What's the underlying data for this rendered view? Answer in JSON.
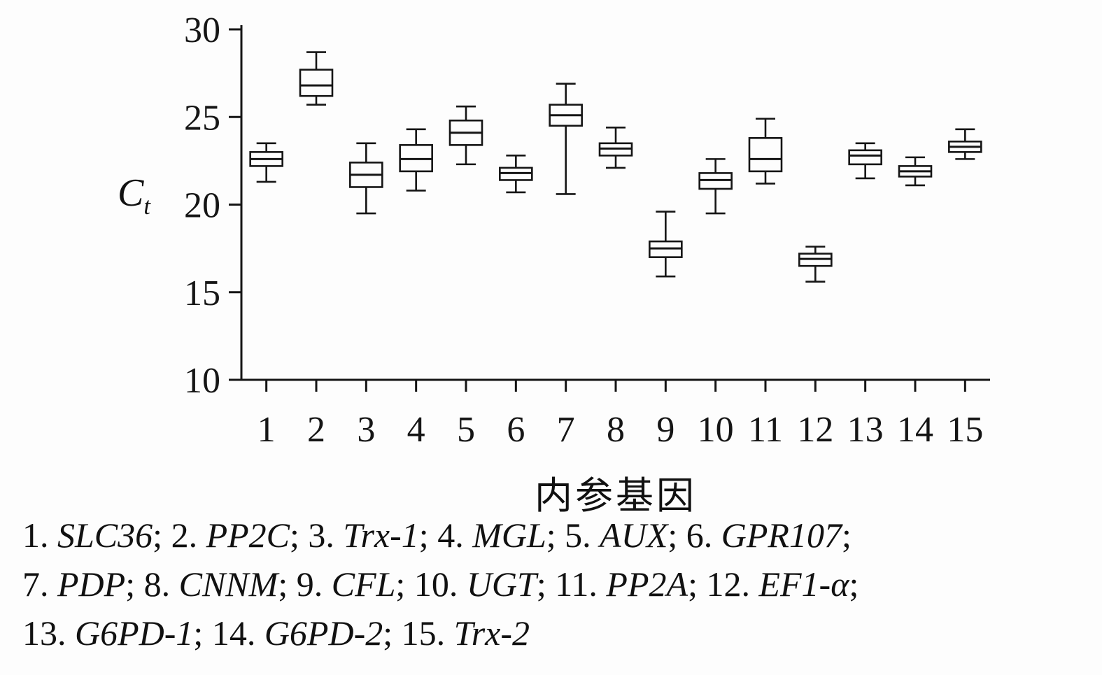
{
  "figure": {
    "background_color": "#fdfdfd",
    "line_color": "#151515"
  },
  "chart_data": {
    "type": "boxplot",
    "title": "",
    "xlabel": "内参基因",
    "ylabel_main": "C",
    "ylabel_sub": "t",
    "ylim": [
      10,
      30
    ],
    "y_ticks": [
      "10",
      "15",
      "20",
      "25",
      "30"
    ],
    "grid": false,
    "legend_position": "none",
    "categories": [
      "1",
      "2",
      "3",
      "4",
      "5",
      "6",
      "7",
      "8",
      "9",
      "10",
      "11",
      "12",
      "13",
      "14",
      "15"
    ],
    "boxes": [
      {
        "category": "1",
        "gene": "SLC36",
        "whisker_low": 21.3,
        "q1": 22.2,
        "median": 22.6,
        "q3": 23.0,
        "whisker_high": 23.5
      },
      {
        "category": "2",
        "gene": "PP2C",
        "whisker_low": 25.7,
        "q1": 26.2,
        "median": 26.8,
        "q3": 27.7,
        "whisker_high": 28.7
      },
      {
        "category": "3",
        "gene": "Trx-1",
        "whisker_low": 19.5,
        "q1": 21.0,
        "median": 21.7,
        "q3": 22.4,
        "whisker_high": 23.5
      },
      {
        "category": "4",
        "gene": "MGL",
        "whisker_low": 20.8,
        "q1": 21.9,
        "median": 22.6,
        "q3": 23.4,
        "whisker_high": 24.3
      },
      {
        "category": "5",
        "gene": "AUX",
        "whisker_low": 22.3,
        "q1": 23.4,
        "median": 24.1,
        "q3": 24.8,
        "whisker_high": 25.6
      },
      {
        "category": "6",
        "gene": "GPR107",
        "whisker_low": 20.7,
        "q1": 21.4,
        "median": 21.8,
        "q3": 22.1,
        "whisker_high": 22.8
      },
      {
        "category": "7",
        "gene": "PDP",
        "whisker_low": 20.6,
        "q1": 24.5,
        "median": 25.1,
        "q3": 25.7,
        "whisker_high": 26.9
      },
      {
        "category": "8",
        "gene": "CNNM",
        "whisker_low": 22.1,
        "q1": 22.8,
        "median": 23.2,
        "q3": 23.5,
        "whisker_high": 24.4
      },
      {
        "category": "9",
        "gene": "CFL",
        "whisker_low": 15.9,
        "q1": 17.0,
        "median": 17.5,
        "q3": 17.9,
        "whisker_high": 19.6
      },
      {
        "category": "10",
        "gene": "UGT",
        "whisker_low": 19.5,
        "q1": 20.9,
        "median": 21.4,
        "q3": 21.8,
        "whisker_high": 22.6
      },
      {
        "category": "11",
        "gene": "PP2A",
        "whisker_low": 21.2,
        "q1": 21.9,
        "median": 22.6,
        "q3": 23.8,
        "whisker_high": 24.9
      },
      {
        "category": "12",
        "gene": "EF1-α",
        "whisker_low": 15.6,
        "q1": 16.5,
        "median": 16.9,
        "q3": 17.2,
        "whisker_high": 17.6
      },
      {
        "category": "13",
        "gene": "G6PD-1",
        "whisker_low": 21.5,
        "q1": 22.3,
        "median": 22.8,
        "q3": 23.1,
        "whisker_high": 23.5
      },
      {
        "category": "14",
        "gene": "G6PD-2",
        "whisker_low": 21.1,
        "q1": 21.6,
        "median": 21.9,
        "q3": 22.2,
        "whisker_high": 22.7
      },
      {
        "category": "15",
        "gene": "Trx-2",
        "whisker_low": 22.6,
        "q1": 23.0,
        "median": 23.3,
        "q3": 23.6,
        "whisker_high": 24.3
      }
    ]
  },
  "legend": {
    "lines": [
      [
        {
          "num": "1.",
          "gene": "SLC36",
          "sep": "; "
        },
        {
          "num": "2.",
          "gene": "PP2C",
          "sep": "; "
        },
        {
          "num": "3.",
          "gene": "Trx-1",
          "sep": "; "
        },
        {
          "num": "4.",
          "gene": "MGL",
          "sep": "; "
        },
        {
          "num": "5.",
          "gene": "AUX",
          "sep": "; "
        },
        {
          "num": "6.",
          "gene": "GPR107",
          "sep": ";"
        }
      ],
      [
        {
          "num": "7.",
          "gene": "PDP",
          "sep": "; "
        },
        {
          "num": "8.",
          "gene": "CNNM",
          "sep": "; "
        },
        {
          "num": "9.",
          "gene": "CFL",
          "sep": "; "
        },
        {
          "num": "10.",
          "gene": "UGT",
          "sep": "; "
        },
        {
          "num": "11.",
          "gene": "PP2A",
          "sep": "; "
        },
        {
          "num": "12.",
          "gene": "EF1-α",
          "sep": ";"
        }
      ],
      [
        {
          "num": "13.",
          "gene": "G6PD-1",
          "sep": "; "
        },
        {
          "num": "14.",
          "gene": "G6PD-2",
          "sep": "; "
        },
        {
          "num": "15.",
          "gene": "Trx-2",
          "sep": ""
        }
      ]
    ]
  }
}
